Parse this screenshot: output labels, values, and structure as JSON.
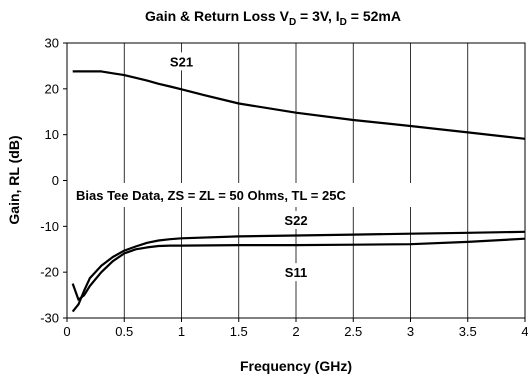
{
  "chart_data": {
    "type": "line",
    "title": {
      "main": "Gain & Return Loss",
      "vd_symbol": "V",
      "vd_sub": "D",
      "vd_value": " = 3V, ",
      "id_symbol": "I",
      "id_sub": "D",
      "id_value": " = 52mA"
    },
    "xlabel": "Frequency (GHz)",
    "ylabel": "Gain, RL (dB)",
    "xlim": [
      0,
      4
    ],
    "ylim": [
      -30,
      30
    ],
    "x_ticks": [
      "0",
      "0.5",
      "1",
      "1.5",
      "2",
      "2.5",
      "3",
      "3.5",
      "4"
    ],
    "y_ticks": [
      "30",
      "20",
      "10",
      "0",
      "-10",
      "-20",
      "-30"
    ],
    "grid": {
      "vertical": true,
      "horizontal": false
    },
    "annotation": "Bias Tee Data, ZS = ZL = 50 Ohms, TL = 25C",
    "series": [
      {
        "name": "S21",
        "color": "#000000",
        "x": [
          0.05,
          0.1,
          0.2,
          0.3,
          0.4,
          0.5,
          0.6,
          0.7,
          0.8,
          0.9,
          1.0,
          1.2,
          1.5,
          2.0,
          2.5,
          3.0,
          3.5,
          4.0
        ],
        "y": [
          23.8,
          23.8,
          23.8,
          23.8,
          23.4,
          23.0,
          22.4,
          21.8,
          21.1,
          20.5,
          19.9,
          18.6,
          16.8,
          14.8,
          13.2,
          11.9,
          10.5,
          9.1
        ]
      },
      {
        "name": "S22",
        "color": "#000000",
        "x": [
          0.05,
          0.1,
          0.15,
          0.2,
          0.3,
          0.4,
          0.5,
          0.6,
          0.7,
          0.8,
          0.9,
          1.0,
          1.5,
          2.0,
          2.5,
          3.0,
          3.5,
          4.0
        ],
        "y": [
          -28.6,
          -27.0,
          -24.0,
          -21.3,
          -18.6,
          -16.7,
          -15.3,
          -14.4,
          -13.6,
          -13.1,
          -12.8,
          -12.6,
          -12.2,
          -12.0,
          -11.8,
          -11.6,
          -11.4,
          -11.2
        ]
      },
      {
        "name": "S11",
        "color": "#000000",
        "x": [
          0.05,
          0.1,
          0.15,
          0.2,
          0.3,
          0.4,
          0.5,
          0.6,
          0.7,
          0.8,
          0.9,
          1.0,
          1.5,
          2.0,
          2.5,
          3.0,
          3.5,
          4.0
        ],
        "y": [
          -22.5,
          -26.0,
          -25.0,
          -23.0,
          -20.0,
          -17.6,
          -15.9,
          -15.0,
          -14.6,
          -14.3,
          -14.2,
          -14.2,
          -14.1,
          -14.1,
          -14.0,
          -13.9,
          -13.4,
          -12.7
        ]
      }
    ],
    "series_label_anchors": {
      "S21": {
        "x": 1.0,
        "y": 26.0
      },
      "S22": {
        "x": 2.0,
        "y": -8.6
      },
      "S11": {
        "x": 2.0,
        "y": -20.0
      }
    }
  }
}
